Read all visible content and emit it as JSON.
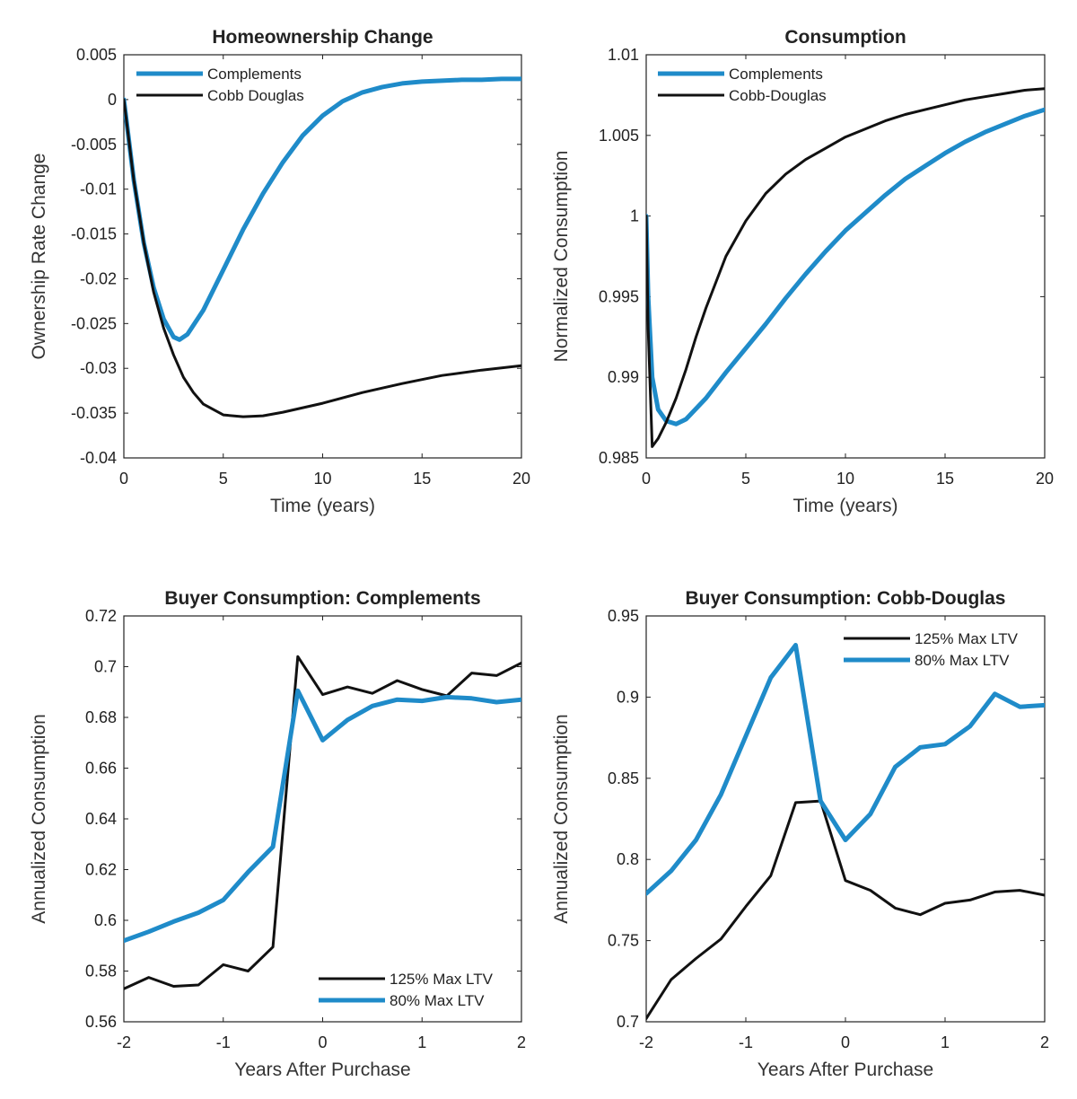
{
  "colors": {
    "blue": "#1f8bc9",
    "black": "#111111"
  },
  "chart_data": [
    {
      "type": "line",
      "title": "Homeownership Change",
      "xlabel": "Time (years)",
      "ylabel": "Ownership Rate Change",
      "xlim": [
        0,
        20
      ],
      "ylim": [
        -0.04,
        0.005
      ],
      "xticks": [
        0,
        5,
        10,
        15,
        20
      ],
      "xtick_labels": [
        "0",
        "5",
        "10",
        "15",
        "20"
      ],
      "yticks": [
        0.005,
        0,
        -0.005,
        -0.01,
        -0.015,
        -0.02,
        -0.025,
        -0.03,
        -0.035,
        -0.04
      ],
      "ytick_labels": [
        "0.005",
        "0",
        "-0.005",
        "-0.01",
        "-0.015",
        "-0.02",
        "-0.025",
        "-0.03",
        "-0.035",
        "-0.04"
      ],
      "legend": "top-left",
      "series": [
        {
          "name": "Complements",
          "color": "blue",
          "width": 5,
          "x": [
            0,
            0.5,
            1,
            1.5,
            2,
            2.5,
            2.8,
            3.2,
            4,
            5,
            6,
            7,
            8,
            9,
            10,
            11,
            12,
            13,
            14,
            15,
            16,
            17,
            18,
            19,
            20
          ],
          "y": [
            0,
            -0.009,
            -0.016,
            -0.021,
            -0.0245,
            -0.0265,
            -0.0268,
            -0.0262,
            -0.0235,
            -0.019,
            -0.0145,
            -0.0105,
            -0.007,
            -0.004,
            -0.0018,
            -0.0002,
            0.0008,
            0.0014,
            0.0018,
            0.002,
            0.0021,
            0.0022,
            0.0022,
            0.0023,
            0.0023
          ]
        },
        {
          "name": "Cobb Douglas",
          "color": "black",
          "width": 3,
          "x": [
            0,
            0.5,
            1,
            1.5,
            2,
            2.5,
            3,
            3.5,
            4,
            5,
            6,
            7,
            8,
            10,
            12,
            14,
            16,
            18,
            20
          ],
          "y": [
            0,
            -0.009,
            -0.016,
            -0.0215,
            -0.0255,
            -0.0285,
            -0.031,
            -0.0327,
            -0.034,
            -0.0352,
            -0.0354,
            -0.0353,
            -0.0349,
            -0.0339,
            -0.0327,
            -0.0317,
            -0.0308,
            -0.0302,
            -0.0297
          ]
        }
      ]
    },
    {
      "type": "line",
      "title": "Consumption",
      "xlabel": "Time (years)",
      "ylabel": "Normalized Consumption",
      "xlim": [
        0,
        20
      ],
      "ylim": [
        0.985,
        1.01
      ],
      "xticks": [
        0,
        5,
        10,
        15,
        20
      ],
      "xtick_labels": [
        "0",
        "5",
        "10",
        "15",
        "20"
      ],
      "yticks": [
        1.01,
        1.005,
        1,
        0.995,
        0.99,
        0.985
      ],
      "ytick_labels": [
        "1.01",
        "1.005",
        "1",
        "0.995",
        "0.99",
        "0.985"
      ],
      "legend": "top-left",
      "series": [
        {
          "name": "Complements",
          "color": "blue",
          "width": 5,
          "x": [
            0,
            0.1,
            0.3,
            0.6,
            1,
            1.5,
            2,
            3,
            4,
            5,
            6,
            7,
            8,
            9,
            10,
            11,
            12,
            13,
            14,
            15,
            16,
            17,
            18,
            19,
            20
          ],
          "y": [
            1.0,
            0.995,
            0.99,
            0.988,
            0.9873,
            0.9871,
            0.9874,
            0.9887,
            0.9903,
            0.9918,
            0.9933,
            0.9949,
            0.9964,
            0.9978,
            0.9991,
            1.0002,
            1.0013,
            1.0023,
            1.0031,
            1.0039,
            1.0046,
            1.0052,
            1.0057,
            1.0062,
            1.0066
          ]
        },
        {
          "name": "Cobb-Douglas",
          "color": "black",
          "width": 3,
          "x": [
            0,
            0.1,
            0.3,
            0.6,
            1,
            1.5,
            2,
            2.5,
            3,
            4,
            5,
            6,
            7,
            8,
            9,
            10,
            11,
            12,
            13,
            14,
            15,
            16,
            17,
            18,
            19,
            20
          ],
          "y": [
            1.0,
            0.993,
            0.9857,
            0.9862,
            0.9872,
            0.9887,
            0.9905,
            0.9925,
            0.9943,
            0.9975,
            0.9997,
            1.0014,
            1.0026,
            1.0035,
            1.0042,
            1.0049,
            1.0054,
            1.0059,
            1.0063,
            1.0066,
            1.0069,
            1.0072,
            1.0074,
            1.0076,
            1.0078,
            1.0079
          ]
        }
      ]
    },
    {
      "type": "line",
      "title": "Buyer Consumption: Complements",
      "xlabel": "Years After Purchase",
      "ylabel": "Annualized Consumption",
      "xlim": [
        -2,
        2
      ],
      "ylim": [
        0.56,
        0.72
      ],
      "xticks": [
        -2,
        -1,
        0,
        1,
        2
      ],
      "xtick_labels": [
        "-2",
        "-1",
        "0",
        "1",
        "2"
      ],
      "yticks": [
        0.72,
        0.7,
        0.68,
        0.66,
        0.64,
        0.62,
        0.6,
        0.58,
        0.56
      ],
      "ytick_labels": [
        "0.72",
        "0.7",
        "0.68",
        "0.66",
        "0.64",
        "0.62",
        "0.6",
        "0.58",
        "0.56"
      ],
      "legend": "bottom-right",
      "series": [
        {
          "name": "125% Max LTV",
          "color": "black",
          "width": 3,
          "x": [
            -2,
            -1.75,
            -1.5,
            -1.25,
            -1,
            -0.75,
            -0.5,
            -0.25,
            0,
            0.25,
            0.5,
            0.75,
            1,
            1.25,
            1.5,
            1.75,
            2
          ],
          "y": [
            0.573,
            0.5775,
            0.574,
            0.5745,
            0.5825,
            0.58,
            0.5895,
            0.704,
            0.689,
            0.692,
            0.6895,
            0.6945,
            0.691,
            0.6885,
            0.6975,
            0.6965,
            0.7015
          ]
        },
        {
          "name": "80% Max LTV",
          "color": "blue",
          "width": 5,
          "x": [
            -2,
            -1.75,
            -1.5,
            -1.25,
            -1,
            -0.75,
            -0.5,
            -0.25,
            0,
            0.25,
            0.5,
            0.75,
            1,
            1.25,
            1.5,
            1.75,
            2
          ],
          "y": [
            0.592,
            0.5955,
            0.5995,
            0.603,
            0.608,
            0.619,
            0.629,
            0.6905,
            0.671,
            0.679,
            0.6845,
            0.687,
            0.6865,
            0.688,
            0.6875,
            0.686,
            0.687
          ]
        }
      ]
    },
    {
      "type": "line",
      "title": "Buyer Consumption: Cobb-Douglas",
      "xlabel": "Years After Purchase",
      "ylabel": "Annualized Consumption",
      "xlim": [
        -2,
        2
      ],
      "ylim": [
        0.7,
        0.95
      ],
      "xticks": [
        -2,
        -1,
        0,
        1,
        2
      ],
      "xtick_labels": [
        "-2",
        "-1",
        "0",
        "1",
        "2"
      ],
      "yticks": [
        0.95,
        0.9,
        0.85,
        0.8,
        0.75,
        0.7
      ],
      "ytick_labels": [
        "0.95",
        "0.9",
        "0.85",
        "0.8",
        "0.75",
        "0.7"
      ],
      "legend": "top-right",
      "series": [
        {
          "name": "125% Max LTV",
          "color": "black",
          "width": 3,
          "x": [
            -2,
            -1.75,
            -1.5,
            -1.25,
            -1,
            -0.75,
            -0.5,
            -0.25,
            0,
            0.25,
            0.5,
            0.75,
            1,
            1.25,
            1.5,
            1.75,
            2
          ],
          "y": [
            0.702,
            0.726,
            0.739,
            0.751,
            0.771,
            0.79,
            0.835,
            0.836,
            0.787,
            0.781,
            0.77,
            0.766,
            0.773,
            0.775,
            0.78,
            0.781,
            0.778
          ]
        },
        {
          "name": "80% Max LTV",
          "color": "blue",
          "width": 5,
          "x": [
            -2,
            -1.75,
            -1.5,
            -1.25,
            -1,
            -0.75,
            -0.5,
            -0.25,
            0,
            0.25,
            0.5,
            0.75,
            1,
            1.25,
            1.5,
            1.75,
            2
          ],
          "y": [
            0.779,
            0.793,
            0.812,
            0.84,
            0.876,
            0.912,
            0.932,
            0.836,
            0.812,
            0.828,
            0.857,
            0.869,
            0.871,
            0.882,
            0.902,
            0.894,
            0.895
          ]
        }
      ]
    }
  ]
}
